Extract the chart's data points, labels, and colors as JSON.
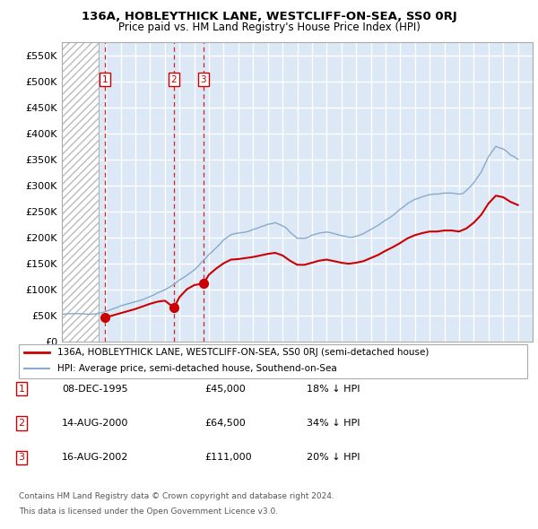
{
  "title": "136A, HOBLEYTHICK LANE, WESTCLIFF-ON-SEA, SS0 0RJ",
  "subtitle": "Price paid vs. HM Land Registry's House Price Index (HPI)",
  "ylim": [
    0,
    575000
  ],
  "xlim_start": 1993.0,
  "xlim_end": 2025.0,
  "yticks": [
    0,
    50000,
    100000,
    150000,
    200000,
    250000,
    300000,
    350000,
    400000,
    450000,
    500000,
    550000
  ],
  "ytick_labels": [
    "£0",
    "£50K",
    "£100K",
    "£150K",
    "£200K",
    "£250K",
    "£300K",
    "£350K",
    "£400K",
    "£450K",
    "£500K",
    "£550K"
  ],
  "xticks": [
    1993,
    1994,
    1995,
    1996,
    1997,
    1998,
    1999,
    2000,
    2001,
    2002,
    2003,
    2004,
    2005,
    2006,
    2007,
    2008,
    2009,
    2010,
    2011,
    2012,
    2013,
    2014,
    2015,
    2016,
    2017,
    2018,
    2019,
    2020,
    2021,
    2022,
    2023,
    2024
  ],
  "hatch_end_year": 1995.5,
  "sale_dates": [
    1995.93,
    2000.62,
    2002.62
  ],
  "sale_prices": [
    45000,
    64500,
    111000
  ],
  "sale_labels": [
    "1",
    "2",
    "3"
  ],
  "legend_line1": "136A, HOBLEYTHICK LANE, WESTCLIFF-ON-SEA, SS0 0RJ (semi-detached house)",
  "legend_line2": "HPI: Average price, semi-detached house, Southend-on-Sea",
  "table_rows": [
    {
      "num": "1",
      "date": "08-DEC-1995",
      "price": "£45,000",
      "hpi": "18% ↓ HPI"
    },
    {
      "num": "2",
      "date": "14-AUG-2000",
      "price": "£64,500",
      "hpi": "34% ↓ HPI"
    },
    {
      "num": "3",
      "date": "16-AUG-2002",
      "price": "£111,000",
      "hpi": "20% ↓ HPI"
    }
  ],
  "footnote1": "Contains HM Land Registry data © Crown copyright and database right 2024.",
  "footnote2": "This data is licensed under the Open Government Licence v3.0.",
  "red_line_color": "#cc0000",
  "blue_line_color": "#88aacc",
  "bg_plot_color": "#dce8f5",
  "grid_color": "#ffffff",
  "box_color": "#cc0000",
  "hpi_years": [
    1993.0,
    1993.25,
    1993.5,
    1993.75,
    1994.0,
    1994.25,
    1994.5,
    1994.75,
    1995.0,
    1995.25,
    1995.5,
    1995.75,
    1996.0,
    1996.25,
    1996.5,
    1996.75,
    1997.0,
    1997.25,
    1997.5,
    1997.75,
    1998.0,
    1998.25,
    1998.5,
    1998.75,
    1999.0,
    1999.25,
    1999.5,
    1999.75,
    2000.0,
    2000.25,
    2000.5,
    2000.75,
    2001.0,
    2001.25,
    2001.5,
    2001.75,
    2002.0,
    2002.25,
    2002.5,
    2002.75,
    2003.0,
    2003.25,
    2003.5,
    2003.75,
    2004.0,
    2004.25,
    2004.5,
    2004.75,
    2005.0,
    2005.25,
    2005.5,
    2005.75,
    2006.0,
    2006.25,
    2006.5,
    2006.75,
    2007.0,
    2007.25,
    2007.5,
    2007.75,
    2008.0,
    2008.25,
    2008.5,
    2008.75,
    2009.0,
    2009.25,
    2009.5,
    2009.75,
    2010.0,
    2010.25,
    2010.5,
    2010.75,
    2011.0,
    2011.25,
    2011.5,
    2011.75,
    2012.0,
    2012.25,
    2012.5,
    2012.75,
    2013.0,
    2013.25,
    2013.5,
    2013.75,
    2014.0,
    2014.25,
    2014.5,
    2014.75,
    2015.0,
    2015.25,
    2015.5,
    2015.75,
    2016.0,
    2016.25,
    2016.5,
    2016.75,
    2017.0,
    2017.25,
    2017.5,
    2017.75,
    2018.0,
    2018.25,
    2018.5,
    2018.75,
    2019.0,
    2019.25,
    2019.5,
    2019.75,
    2020.0,
    2020.25,
    2020.5,
    2020.75,
    2021.0,
    2021.25,
    2021.5,
    2021.75,
    2022.0,
    2022.25,
    2022.5,
    2022.75,
    2023.0,
    2023.25,
    2023.5,
    2023.75,
    2024.0
  ],
  "hpi_values": [
    52000,
    52500,
    53000,
    53000,
    53000,
    53000,
    52500,
    52000,
    52000,
    52500,
    53500,
    55000,
    57500,
    60000,
    62500,
    65000,
    68000,
    70000,
    72000,
    74000,
    76000,
    78000,
    80000,
    83000,
    86000,
    89000,
    93000,
    96000,
    99000,
    103000,
    107000,
    112000,
    118000,
    122000,
    127000,
    132000,
    137000,
    144000,
    152000,
    159000,
    167000,
    173000,
    180000,
    187000,
    195000,
    200000,
    205000,
    207000,
    208000,
    209000,
    210000,
    212000,
    215000,
    217000,
    220000,
    222000,
    225000,
    226000,
    228000,
    225000,
    222000,
    218000,
    210000,
    204000,
    198000,
    198000,
    198000,
    200000,
    204000,
    206000,
    208000,
    209000,
    210000,
    209000,
    207000,
    205000,
    203000,
    202000,
    200000,
    200000,
    202000,
    204000,
    207000,
    211000,
    215000,
    219000,
    223000,
    228000,
    233000,
    237000,
    242000,
    248000,
    254000,
    259000,
    265000,
    269000,
    273000,
    275000,
    278000,
    280000,
    282000,
    283000,
    283000,
    284000,
    285000,
    285000,
    285000,
    284000,
    283000,
    284000,
    290000,
    297000,
    305000,
    315000,
    325000,
    340000,
    355000,
    365000,
    375000,
    372000,
    370000,
    365000,
    358000,
    355000,
    350000
  ],
  "red_years": [
    1995.93,
    1996.0,
    1996.5,
    1997.0,
    1997.5,
    1998.0,
    1998.5,
    1999.0,
    1999.5,
    2000.0,
    2000.62,
    2001.0,
    2001.5,
    2002.0,
    2002.62,
    2003.0,
    2003.5,
    2004.0,
    2004.5,
    2005.0,
    2005.5,
    2006.0,
    2006.5,
    2007.0,
    2007.5,
    2008.0,
    2008.5,
    2009.0,
    2009.5,
    2010.0,
    2010.5,
    2011.0,
    2011.5,
    2012.0,
    2012.5,
    2013.0,
    2013.5,
    2014.0,
    2014.5,
    2015.0,
    2015.5,
    2016.0,
    2016.5,
    2017.0,
    2017.5,
    2018.0,
    2018.5,
    2019.0,
    2019.5,
    2020.0,
    2020.5,
    2021.0,
    2021.5,
    2022.0,
    2022.5,
    2023.0,
    2023.5,
    2024.0
  ],
  "red_values": [
    45000,
    46000,
    50000,
    54000,
    58000,
    62000,
    67000,
    72000,
    76000,
    78000,
    64500,
    85000,
    100000,
    108000,
    111000,
    128000,
    140000,
    150000,
    157000,
    158000,
    160000,
    162000,
    165000,
    168000,
    170000,
    165000,
    155000,
    147000,
    147000,
    151000,
    155000,
    157000,
    154000,
    151000,
    149000,
    151000,
    154000,
    160000,
    166000,
    174000,
    181000,
    189000,
    198000,
    204000,
    208000,
    211000,
    211000,
    213000,
    213000,
    211000,
    217000,
    228000,
    243000,
    265000,
    280000,
    277000,
    268000,
    262000
  ]
}
